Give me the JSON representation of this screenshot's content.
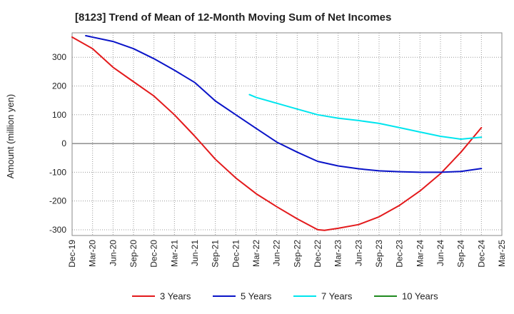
{
  "chart_data": {
    "type": "line",
    "title": "[8123]  Trend of Mean of 12-Month Moving Sum of Net Incomes",
    "xlabel": "",
    "ylabel": "Amount (million yen)",
    "ylim": [
      -320,
      385
    ],
    "yticks": [
      -300,
      -200,
      -100,
      0,
      100,
      200,
      300
    ],
    "grid": true,
    "legend_position": "bottom",
    "x_tick_labels": [
      "Dec-19",
      "Mar-20",
      "Jun-20",
      "Sep-20",
      "Dec-20",
      "Mar-21",
      "Jun-21",
      "Sep-21",
      "Dec-21",
      "Mar-22",
      "Jun-22",
      "Sep-22",
      "Dec-22",
      "Mar-23",
      "Jun-23",
      "Sep-23",
      "Dec-23",
      "Mar-24",
      "Jun-24",
      "Sep-24",
      "Dec-24",
      "Mar-25"
    ],
    "series": [
      {
        "name": "3 Years",
        "color": "#e31a1c",
        "points": [
          [
            "Dec-19",
            370
          ],
          [
            "Mar-20",
            330
          ],
          [
            "Jun-20",
            265
          ],
          [
            "Sep-20",
            215
          ],
          [
            "Dec-20",
            165
          ],
          [
            "Mar-21",
            100
          ],
          [
            "Jun-21",
            25
          ],
          [
            "Sep-21",
            -55
          ],
          [
            "Dec-21",
            -120
          ],
          [
            "Mar-22",
            -175
          ],
          [
            "Jun-22",
            -220
          ],
          [
            "Sep-22",
            -262
          ],
          [
            "Dec-22",
            -300
          ],
          [
            "Jan-23",
            -302
          ],
          [
            "Mar-23",
            -295
          ],
          [
            "Jun-23",
            -282
          ],
          [
            "Sep-23",
            -255
          ],
          [
            "Dec-23",
            -215
          ],
          [
            "Mar-24",
            -165
          ],
          [
            "Jun-24",
            -105
          ],
          [
            "Sep-24",
            -30
          ],
          [
            "Dec-24",
            55
          ]
        ]
      },
      {
        "name": "5 Years",
        "color": "#0a14c8",
        "points": [
          [
            "Feb-20",
            375
          ],
          [
            "Jun-20",
            355
          ],
          [
            "Sep-20",
            330
          ],
          [
            "Dec-20",
            295
          ],
          [
            "Mar-21",
            255
          ],
          [
            "Jun-21",
            212
          ],
          [
            "Sep-21",
            148
          ],
          [
            "Dec-21",
            100
          ],
          [
            "Mar-22",
            52
          ],
          [
            "Jun-22",
            5
          ],
          [
            "Sep-22",
            -30
          ],
          [
            "Dec-22",
            -62
          ],
          [
            "Mar-23",
            -78
          ],
          [
            "Jun-23",
            -88
          ],
          [
            "Sep-23",
            -95
          ],
          [
            "Dec-23",
            -98
          ],
          [
            "Mar-24",
            -100
          ],
          [
            "Jun-24",
            -100
          ],
          [
            "Sep-24",
            -97
          ],
          [
            "Dec-24",
            -87
          ]
        ]
      },
      {
        "name": "7 Years",
        "color": "#00e5ee",
        "points": [
          [
            "Feb-22",
            170
          ],
          [
            "Mar-22",
            160
          ],
          [
            "Jun-22",
            140
          ],
          [
            "Sep-22",
            120
          ],
          [
            "Dec-22",
            100
          ],
          [
            "Mar-23",
            88
          ],
          [
            "Jun-23",
            80
          ],
          [
            "Sep-23",
            70
          ],
          [
            "Dec-23",
            55
          ],
          [
            "Mar-24",
            40
          ],
          [
            "Jun-24",
            25
          ],
          [
            "Sep-24",
            15
          ],
          [
            "Dec-24",
            22
          ]
        ]
      },
      {
        "name": "10 Years",
        "color": "#1f8a1f",
        "points": []
      }
    ]
  }
}
